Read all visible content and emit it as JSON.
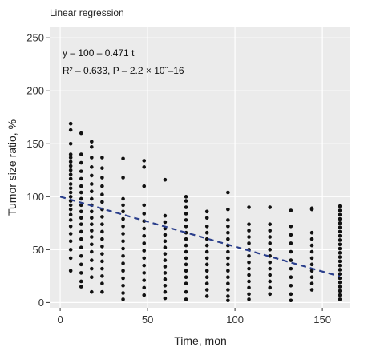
{
  "chart_data": {
    "type": "scatter",
    "title": "Linear regression",
    "xlabel": "Time, mon",
    "ylabel": "Tumor size ratio, %",
    "xlim": [
      -6,
      166
    ],
    "ylim": [
      -5,
      260
    ],
    "xticks": [
      0,
      50,
      100,
      150
    ],
    "yticks": [
      0,
      50,
      100,
      150,
      200,
      250
    ],
    "grid": true,
    "annotation_line1": "y – 100 – 0.471 t",
    "annotation_line2": "R² – 0.633, P – 2.2 × 10ˆ–16",
    "regression": {
      "intercept": 100,
      "slope": -0.471,
      "x_range": [
        0,
        160
      ],
      "style": "dashed",
      "color": "#2b3f8c"
    },
    "colors": {
      "points": "#111111",
      "panel": "#ebebeb",
      "grid": "#ffffff"
    },
    "points": [
      [
        6,
        169
      ],
      [
        6,
        163
      ],
      [
        6,
        150
      ],
      [
        6,
        140
      ],
      [
        6,
        137
      ],
      [
        6,
        133
      ],
      [
        6,
        129
      ],
      [
        6,
        125
      ],
      [
        6,
        121
      ],
      [
        6,
        117
      ],
      [
        6,
        112
      ],
      [
        6,
        108
      ],
      [
        6,
        104
      ],
      [
        6,
        100
      ],
      [
        6,
        96
      ],
      [
        6,
        92
      ],
      [
        6,
        88
      ],
      [
        6,
        83
      ],
      [
        6,
        78
      ],
      [
        6,
        72
      ],
      [
        6,
        65
      ],
      [
        6,
        58
      ],
      [
        6,
        50
      ],
      [
        6,
        42
      ],
      [
        6,
        30
      ],
      [
        12,
        160
      ],
      [
        12,
        140
      ],
      [
        12,
        132
      ],
      [
        12,
        124
      ],
      [
        12,
        117
      ],
      [
        12,
        110
      ],
      [
        12,
        104
      ],
      [
        12,
        98
      ],
      [
        12,
        92
      ],
      [
        12,
        86
      ],
      [
        12,
        80
      ],
      [
        12,
        74
      ],
      [
        12,
        67
      ],
      [
        12,
        60
      ],
      [
        12,
        52
      ],
      [
        12,
        44
      ],
      [
        12,
        36
      ],
      [
        12,
        28
      ],
      [
        12,
        20
      ],
      [
        12,
        15
      ],
      [
        18,
        152
      ],
      [
        18,
        147
      ],
      [
        18,
        137
      ],
      [
        18,
        128
      ],
      [
        18,
        120
      ],
      [
        18,
        112
      ],
      [
        18,
        105
      ],
      [
        18,
        98
      ],
      [
        18,
        92
      ],
      [
        18,
        86
      ],
      [
        18,
        80
      ],
      [
        18,
        74
      ],
      [
        18,
        68
      ],
      [
        18,
        62
      ],
      [
        18,
        55
      ],
      [
        18,
        48
      ],
      [
        18,
        40
      ],
      [
        18,
        32
      ],
      [
        18,
        24
      ],
      [
        18,
        10
      ],
      [
        24,
        137
      ],
      [
        24,
        127
      ],
      [
        24,
        118
      ],
      [
        24,
        110
      ],
      [
        24,
        102
      ],
      [
        24,
        95
      ],
      [
        24,
        88
      ],
      [
        24,
        81
      ],
      [
        24,
        74
      ],
      [
        24,
        67
      ],
      [
        24,
        60
      ],
      [
        24,
        53
      ],
      [
        24,
        46
      ],
      [
        24,
        39
      ],
      [
        24,
        32
      ],
      [
        24,
        25
      ],
      [
        24,
        18
      ],
      [
        24,
        10
      ],
      [
        36,
        136
      ],
      [
        36,
        118
      ],
      [
        36,
        98
      ],
      [
        36,
        92
      ],
      [
        36,
        86
      ],
      [
        36,
        79
      ],
      [
        36,
        72
      ],
      [
        36,
        65
      ],
      [
        36,
        58
      ],
      [
        36,
        51
      ],
      [
        36,
        44
      ],
      [
        36,
        37
      ],
      [
        36,
        30
      ],
      [
        36,
        23
      ],
      [
        36,
        16
      ],
      [
        36,
        9
      ],
      [
        36,
        3
      ],
      [
        48,
        134
      ],
      [
        48,
        128
      ],
      [
        48,
        110
      ],
      [
        48,
        92
      ],
      [
        48,
        84
      ],
      [
        48,
        77
      ],
      [
        48,
        70
      ],
      [
        48,
        63
      ],
      [
        48,
        56
      ],
      [
        48,
        49
      ],
      [
        48,
        42
      ],
      [
        48,
        35
      ],
      [
        48,
        28
      ],
      [
        48,
        21
      ],
      [
        48,
        14
      ],
      [
        48,
        7
      ],
      [
        60,
        116
      ],
      [
        60,
        82
      ],
      [
        60,
        76
      ],
      [
        60,
        70
      ],
      [
        60,
        64
      ],
      [
        60,
        58
      ],
      [
        60,
        52
      ],
      [
        60,
        46
      ],
      [
        60,
        40
      ],
      [
        60,
        34
      ],
      [
        60,
        28
      ],
      [
        60,
        22
      ],
      [
        60,
        16
      ],
      [
        60,
        10
      ],
      [
        60,
        4
      ],
      [
        72,
        100
      ],
      [
        72,
        96
      ],
      [
        72,
        90
      ],
      [
        72,
        84
      ],
      [
        72,
        78
      ],
      [
        72,
        72
      ],
      [
        72,
        66
      ],
      [
        72,
        60
      ],
      [
        72,
        54
      ],
      [
        72,
        48
      ],
      [
        72,
        42
      ],
      [
        72,
        36
      ],
      [
        72,
        30
      ],
      [
        72,
        24
      ],
      [
        72,
        18
      ],
      [
        72,
        10
      ],
      [
        72,
        3
      ],
      [
        84,
        86
      ],
      [
        84,
        80
      ],
      [
        84,
        72
      ],
      [
        84,
        66
      ],
      [
        84,
        60
      ],
      [
        84,
        54
      ],
      [
        84,
        48
      ],
      [
        84,
        42
      ],
      [
        84,
        36
      ],
      [
        84,
        30
      ],
      [
        84,
        24
      ],
      [
        84,
        18
      ],
      [
        84,
        12
      ],
      [
        84,
        6
      ],
      [
        96,
        104
      ],
      [
        96,
        88
      ],
      [
        96,
        78
      ],
      [
        96,
        72
      ],
      [
        96,
        66
      ],
      [
        96,
        60
      ],
      [
        96,
        54
      ],
      [
        96,
        48
      ],
      [
        96,
        42
      ],
      [
        96,
        36
      ],
      [
        96,
        30
      ],
      [
        96,
        24
      ],
      [
        96,
        18
      ],
      [
        96,
        12
      ],
      [
        96,
        6
      ],
      [
        96,
        2
      ],
      [
        108,
        90
      ],
      [
        108,
        74
      ],
      [
        108,
        68
      ],
      [
        108,
        62
      ],
      [
        108,
        56
      ],
      [
        108,
        50
      ],
      [
        108,
        44
      ],
      [
        108,
        38
      ],
      [
        108,
        32
      ],
      [
        108,
        26
      ],
      [
        108,
        20
      ],
      [
        108,
        14
      ],
      [
        108,
        8
      ],
      [
        108,
        3
      ],
      [
        120,
        90
      ],
      [
        120,
        74
      ],
      [
        120,
        68
      ],
      [
        120,
        62
      ],
      [
        120,
        56
      ],
      [
        120,
        50
      ],
      [
        120,
        44
      ],
      [
        120,
        38
      ],
      [
        120,
        32
      ],
      [
        120,
        26
      ],
      [
        120,
        20
      ],
      [
        120,
        14
      ],
      [
        120,
        8
      ],
      [
        132,
        87
      ],
      [
        132,
        72
      ],
      [
        132,
        64
      ],
      [
        132,
        56
      ],
      [
        132,
        48
      ],
      [
        132,
        40
      ],
      [
        132,
        32
      ],
      [
        132,
        24
      ],
      [
        132,
        16
      ],
      [
        132,
        8
      ],
      [
        132,
        2
      ],
      [
        144,
        89
      ],
      [
        144,
        88
      ],
      [
        144,
        66
      ],
      [
        144,
        60
      ],
      [
        144,
        54
      ],
      [
        144,
        48
      ],
      [
        144,
        42
      ],
      [
        144,
        36
      ],
      [
        144,
        30
      ],
      [
        144,
        24
      ],
      [
        144,
        18
      ],
      [
        144,
        12
      ],
      [
        160,
        91
      ],
      [
        160,
        87
      ],
      [
        160,
        83
      ],
      [
        160,
        79
      ],
      [
        160,
        75
      ],
      [
        160,
        71
      ],
      [
        160,
        67
      ],
      [
        160,
        63
      ],
      [
        160,
        59
      ],
      [
        160,
        55
      ],
      [
        160,
        51
      ],
      [
        160,
        47
      ],
      [
        160,
        43
      ],
      [
        160,
        39
      ],
      [
        160,
        35
      ],
      [
        160,
        31
      ],
      [
        160,
        27
      ],
      [
        160,
        23
      ],
      [
        160,
        19
      ],
      [
        160,
        15
      ],
      [
        160,
        11
      ],
      [
        160,
        7
      ],
      [
        160,
        3
      ]
    ]
  }
}
